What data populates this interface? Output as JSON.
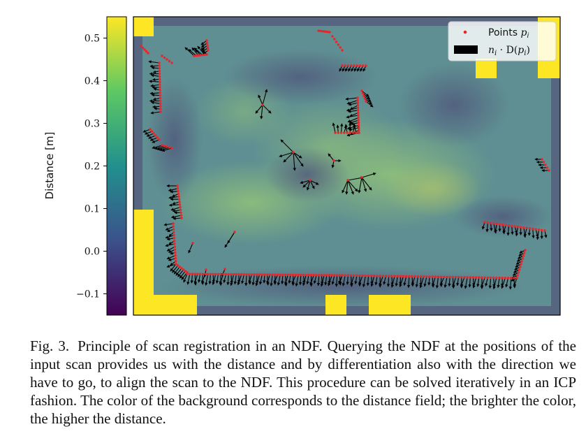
{
  "colorbar": {
    "label": "Distance [m]",
    "ticks": [
      "0.5",
      "0.4",
      "0.3",
      "0.2",
      "0.1",
      "0.0",
      "−0.1"
    ],
    "tick_values": [
      0.5,
      0.4,
      0.3,
      0.2,
      0.1,
      0.0,
      -0.1
    ],
    "range": [
      -0.15,
      0.55
    ],
    "colormap": [
      "#440154",
      "#3b528b",
      "#21908d",
      "#5dc863",
      "#fde725"
    ]
  },
  "legend": {
    "points_label": "Points ",
    "points_math": "p",
    "points_sub": "i",
    "normals_math_n": "n",
    "normals_sub_n": "i",
    "normals_rest": " · D(",
    "normals_math_p": "p",
    "normals_sub_p": "i",
    "normals_close": ")",
    "point_color": "#e8262a",
    "arrow_color": "#000000"
  },
  "caption": {
    "label": "Fig. 3.",
    "text": "Principle of scan registration in an NDF. Querying the NDF at the positions of the input scan provides us with the distance and by differentiation also with the direction we have to go, to align the scan to the NDF. This procedure can be solved iteratively in an ICP fashion. The color of the background corresponds to the distance field; the brighter the color, the higher the distance."
  }
}
